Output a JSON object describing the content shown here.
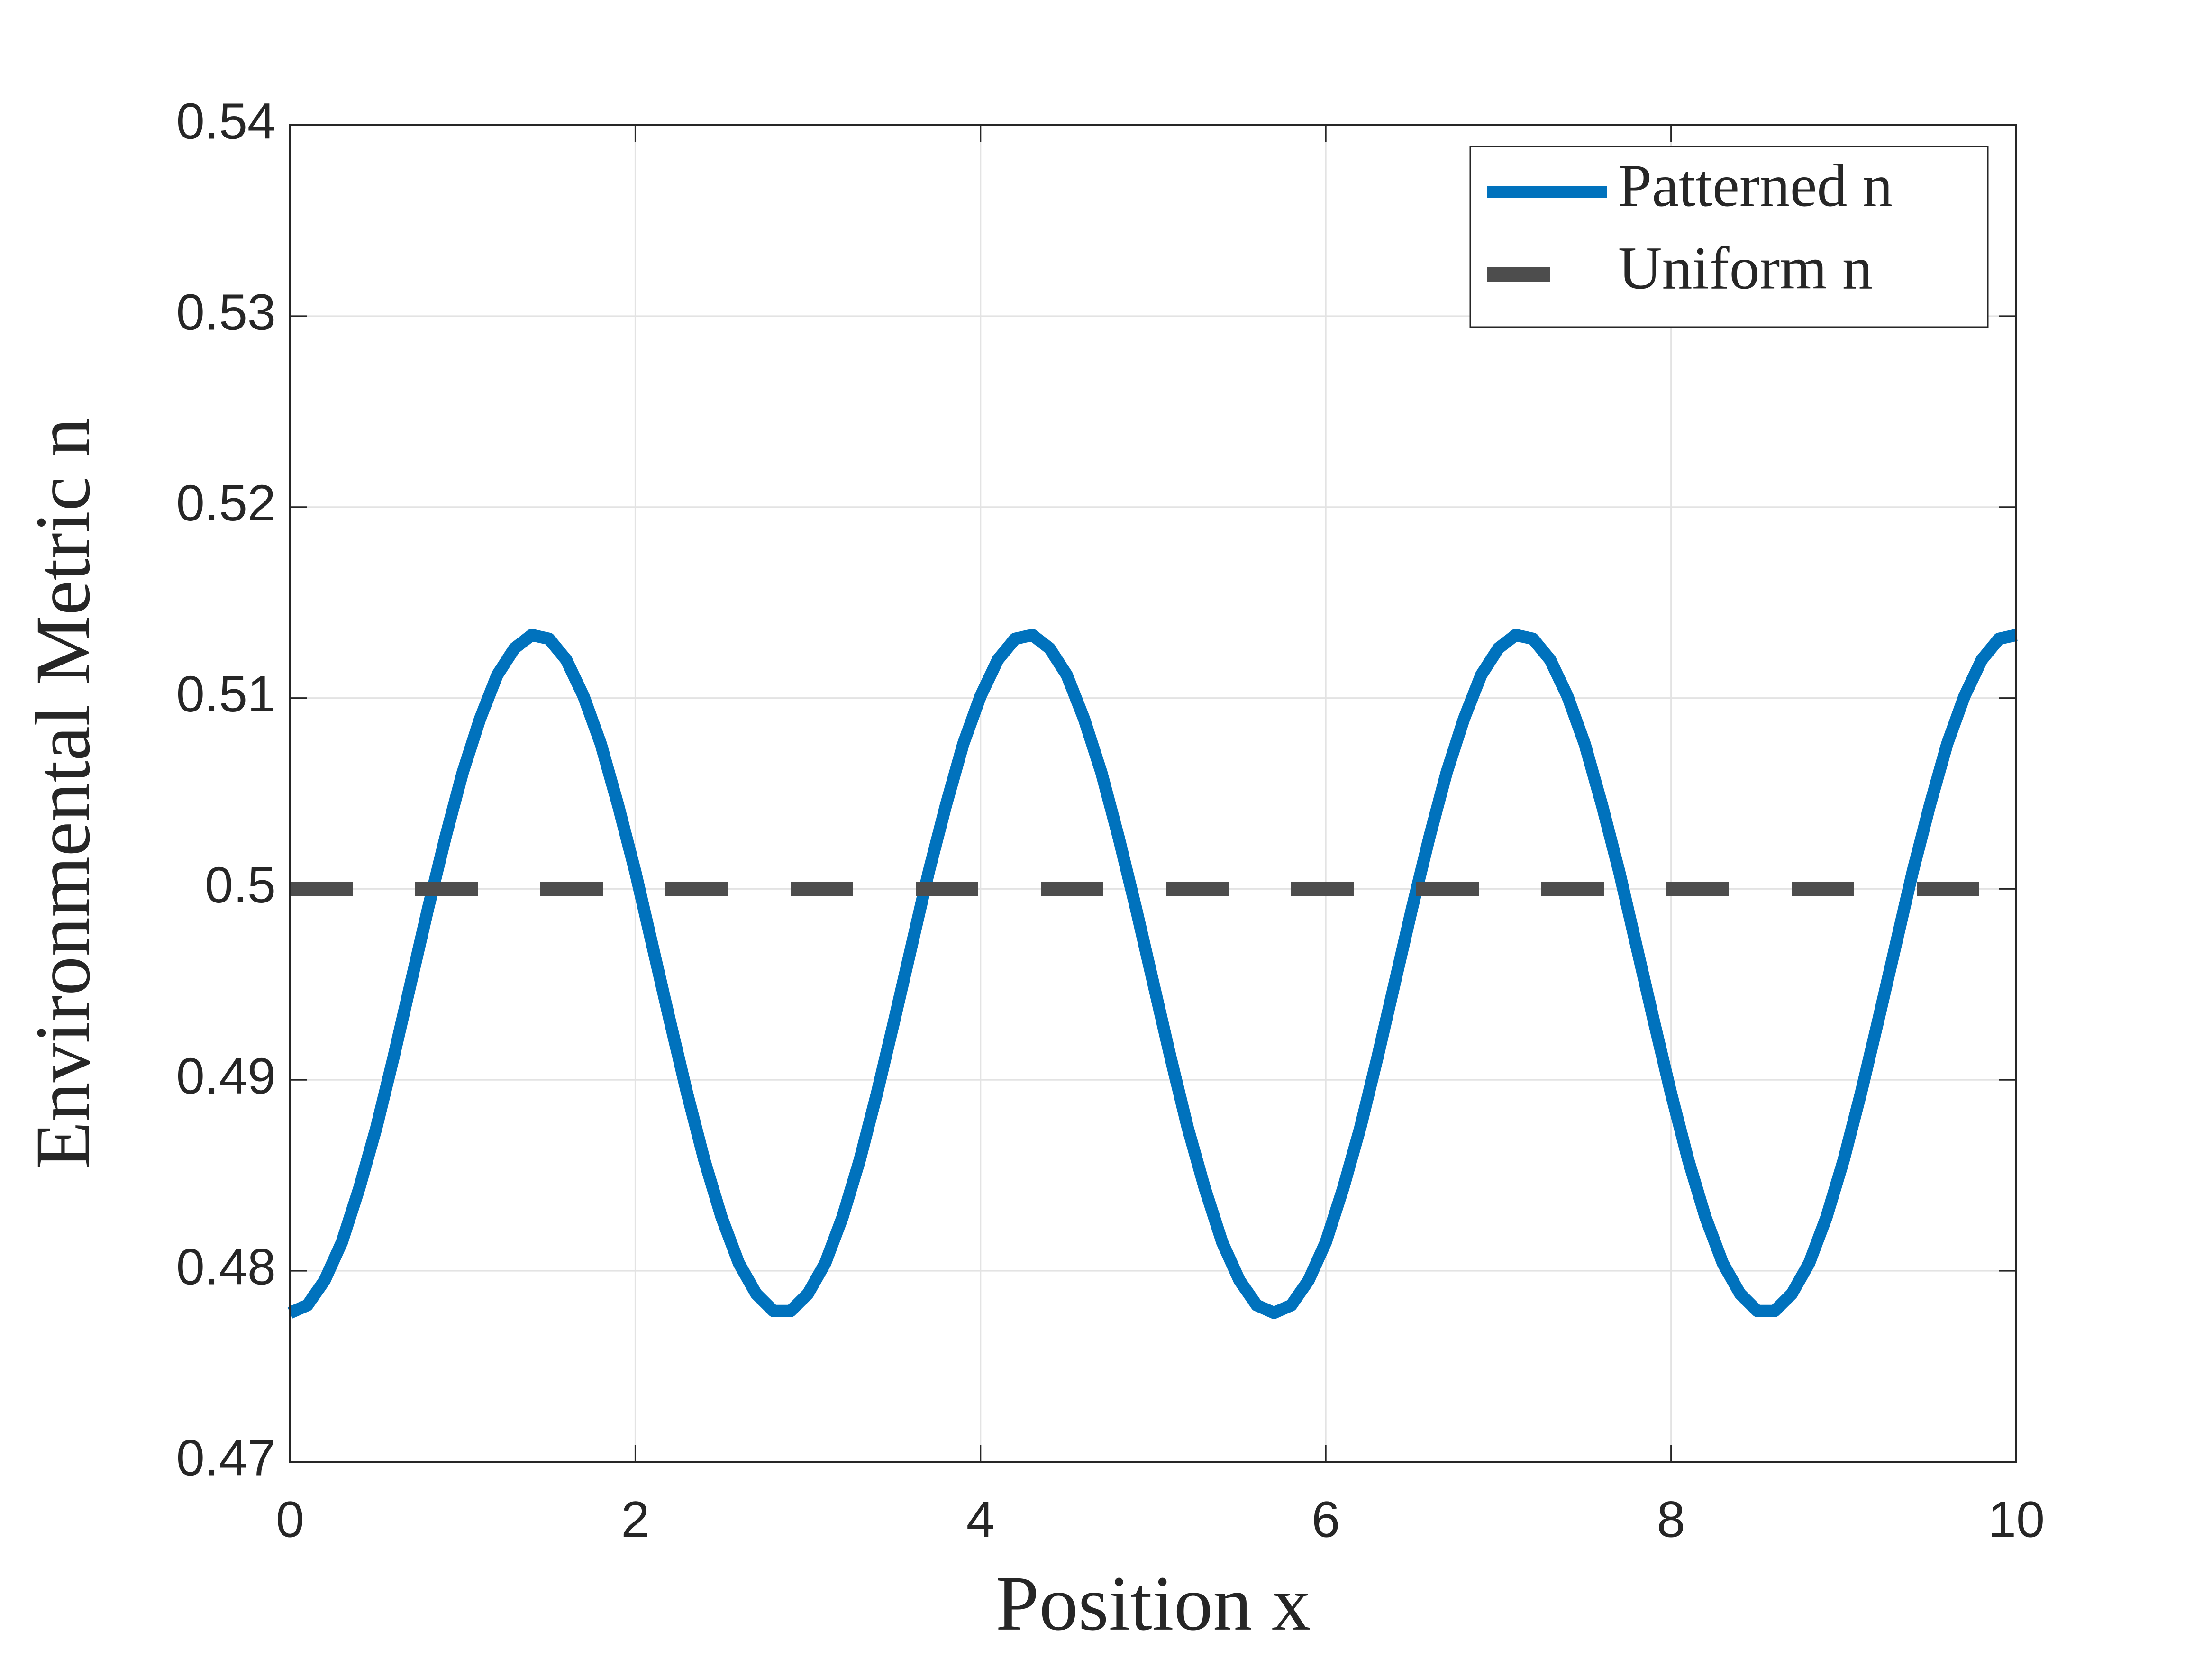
{
  "chart_data": {
    "type": "line",
    "xlabel": "Position x",
    "ylabel": "Environmental Metric n",
    "xlim": [
      0,
      10
    ],
    "xticks": [
      0,
      2,
      4,
      6,
      8,
      10
    ],
    "ylim": [
      0.47,
      0.54
    ],
    "yticks": [
      0.47,
      0.48,
      0.49,
      0.5,
      0.51,
      0.52,
      0.53,
      0.54
    ],
    "grid": true,
    "legend": "upper right",
    "series": [
      {
        "name": "Patterned n",
        "color": "#0072bd",
        "style": "solid",
        "x": [
          0,
          0.1,
          0.2,
          0.3,
          0.4,
          0.5,
          0.6,
          0.7,
          0.8,
          0.9,
          1,
          1.1,
          1.2,
          1.3,
          1.4,
          1.5,
          1.6,
          1.7,
          1.8,
          1.9,
          2,
          2.1,
          2.2,
          2.3,
          2.4,
          2.5,
          2.6,
          2.7,
          2.8,
          2.9,
          3,
          3.1,
          3.2,
          3.3,
          3.4,
          3.5,
          3.6,
          3.7,
          3.8,
          3.9,
          4,
          4.1,
          4.2,
          4.3,
          4.4,
          4.5,
          4.6,
          4.7,
          4.8,
          4.9,
          5,
          5.1,
          5.2,
          5.3,
          5.4,
          5.5,
          5.6,
          5.7,
          5.8,
          5.9,
          6,
          6.1,
          6.2,
          6.3,
          6.4,
          6.5,
          6.6,
          6.7,
          6.8,
          6.9,
          7,
          7.1,
          7.2,
          7.3,
          7.4,
          7.5,
          7.6,
          7.7,
          7.8,
          7.9,
          8,
          8.1,
          8.2,
          8.3,
          8.4,
          8.5,
          8.6,
          8.7,
          8.8,
          8.9,
          9,
          9.1,
          9.2,
          9.3,
          9.4,
          9.5,
          9.6,
          9.7,
          9.8,
          9.9,
          10
        ],
        "values": [
          0.4778,
          0.4782,
          0.4795,
          0.4815,
          0.4843,
          0.4875,
          0.4912,
          0.4951,
          0.499,
          0.5027,
          0.5061,
          0.5089,
          0.5112,
          0.5126,
          0.5133,
          0.5131,
          0.512,
          0.5101,
          0.5076,
          0.5044,
          0.5009,
          0.497,
          0.4931,
          0.4893,
          0.4858,
          0.4828,
          0.4804,
          0.4788,
          0.4779,
          0.4779,
          0.4788,
          0.4804,
          0.4828,
          0.4858,
          0.4893,
          0.4931,
          0.497,
          0.5009,
          0.5044,
          0.5076,
          0.5101,
          0.512,
          0.5131,
          0.5133,
          0.5126,
          0.5112,
          0.5089,
          0.5061,
          0.5027,
          0.499,
          0.4951,
          0.4912,
          0.4875,
          0.4843,
          0.4815,
          0.4795,
          0.4782,
          0.4778,
          0.4782,
          0.4795,
          0.4815,
          0.4843,
          0.4875,
          0.4912,
          0.4951,
          0.499,
          0.5027,
          0.5061,
          0.5089,
          0.5112,
          0.5126,
          0.5133,
          0.5131,
          0.512,
          0.5101,
          0.5076,
          0.5044,
          0.5009,
          0.497,
          0.4931,
          0.4893,
          0.4858,
          0.4828,
          0.4804,
          0.4788,
          0.4779,
          0.4779,
          0.4788,
          0.4804,
          0.4828,
          0.4858,
          0.4893,
          0.4931,
          0.497,
          0.5009,
          0.5044,
          0.5076,
          0.5101,
          0.512,
          0.5131,
          0.5133
        ]
      },
      {
        "name": "Uniform n",
        "color": "#4d4d4d",
        "style": "dashed",
        "x": [
          0,
          10
        ],
        "values": [
          0.5,
          0.5
        ]
      }
    ]
  }
}
